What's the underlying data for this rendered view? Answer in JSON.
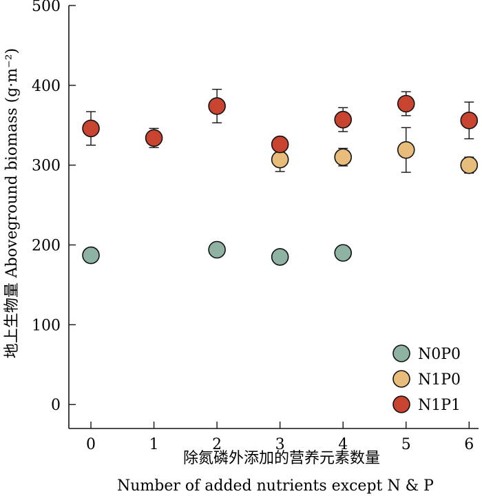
{
  "chart_data": {
    "type": "scatter",
    "xlabel_cn": "除氮磷外添加的营养元素数量",
    "xlabel_en": "Number of added nutrients except N & P",
    "ylabel": "地上生物量 Aboveground biomass (g·m⁻²)",
    "xlim": [
      -0.35,
      6.15
    ],
    "ylim": [
      -30,
      500
    ],
    "xticks": [
      0,
      1,
      2,
      3,
      4,
      5,
      6
    ],
    "yticks": [
      0,
      100,
      200,
      300,
      400,
      500
    ],
    "legend_position": "bottom-right",
    "series": [
      {
        "name": "N0P0",
        "color": "#8fb3a2",
        "points": [
          {
            "x": 0,
            "y": 187,
            "err": 0
          },
          {
            "x": 2,
            "y": 194,
            "err": 0
          },
          {
            "x": 3,
            "y": 185,
            "err": 0
          },
          {
            "x": 4,
            "y": 190,
            "err": 0
          }
        ]
      },
      {
        "name": "N1P0",
        "color": "#e8bc7a",
        "points": [
          {
            "x": 3,
            "y": 307,
            "err": 15
          },
          {
            "x": 4,
            "y": 310,
            "err": 11
          },
          {
            "x": 5,
            "y": 319,
            "err": 28
          },
          {
            "x": 6,
            "y": 300,
            "err": 10
          }
        ]
      },
      {
        "name": "N1P1",
        "color": "#c94430",
        "points": [
          {
            "x": 0,
            "y": 346,
            "err": 21
          },
          {
            "x": 1,
            "y": 334,
            "err": 12
          },
          {
            "x": 2,
            "y": 374,
            "err": 21
          },
          {
            "x": 3,
            "y": 326,
            "err": 0
          },
          {
            "x": 4,
            "y": 357,
            "err": 15
          },
          {
            "x": 5,
            "y": 377,
            "err": 15
          },
          {
            "x": 6,
            "y": 356,
            "err": 23
          }
        ]
      }
    ]
  }
}
